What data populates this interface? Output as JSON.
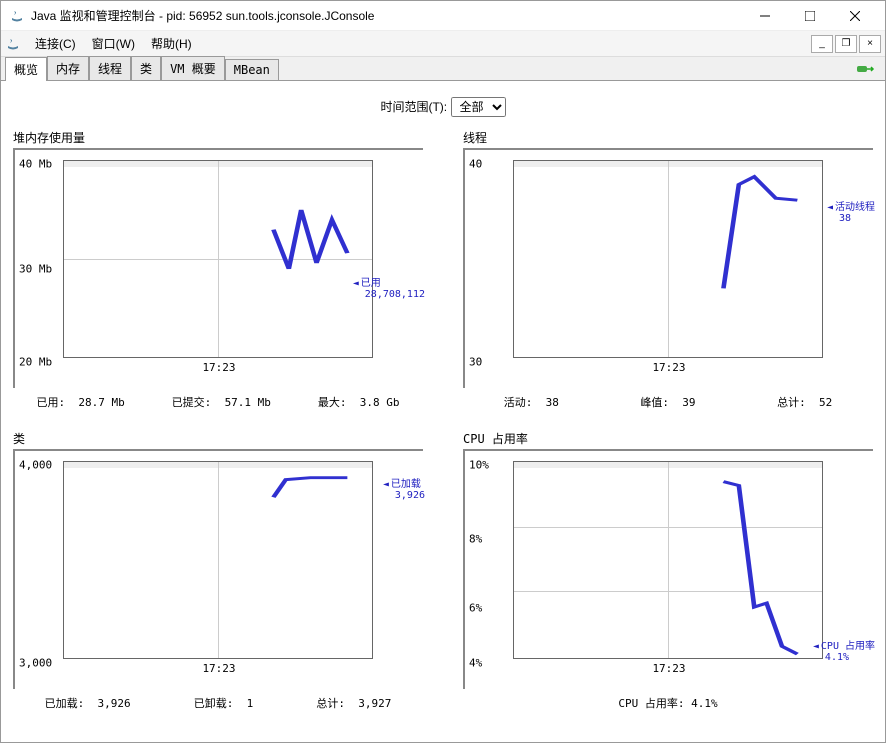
{
  "window": {
    "title": "Java 监视和管理控制台 - pid: 56952 sun.tools.jconsole.JConsole"
  },
  "menu": {
    "connection": "连接(C)",
    "window": "窗口(W)",
    "help": "帮助(H)"
  },
  "tabs": {
    "overview": "概览",
    "memory": "内存",
    "threads": "线程",
    "classes": "类",
    "vm_summary": "VM 概要",
    "mbean": "MBean"
  },
  "time_range": {
    "label": "时间范围(T):",
    "value": "全部"
  },
  "heap": {
    "title": "堆内存使用量",
    "yticks": [
      "40 Mb",
      "30 Mb",
      "20 Mb"
    ],
    "xtick": "17:23",
    "label_title": "已用",
    "label_value": "28,708,112",
    "stats": {
      "used_l": "已用:",
      "used_v": "28.7  Mb",
      "committed_l": "已提交:",
      "committed_v": "57.1  Mb",
      "max_l": "最大:",
      "max_v": "3.8  Gb"
    },
    "points": [
      [
        68,
        35
      ],
      [
        73,
        55
      ],
      [
        77,
        25
      ],
      [
        82,
        52
      ],
      [
        87,
        30
      ],
      [
        92,
        47
      ]
    ]
  },
  "threads": {
    "title": "线程",
    "yticks": [
      "40",
      "30"
    ],
    "xtick": "17:23",
    "label_title": "活动线程",
    "label_value": "38",
    "stats": {
      "live_l": "活动:",
      "live_v": "38",
      "peak_l": "峰值:",
      "peak_v": "39",
      "total_l": "总计:",
      "total_v": "52"
    },
    "points": [
      [
        68,
        65
      ],
      [
        73,
        12
      ],
      [
        78,
        8
      ],
      [
        85,
        19
      ],
      [
        92,
        20
      ]
    ]
  },
  "classes": {
    "title": "类",
    "yticks": [
      "4,000",
      "3,000"
    ],
    "xtick": "17:23",
    "label_title": "已加载",
    "label_value": "3,926",
    "stats": {
      "loaded_l": "已加载:",
      "loaded_v": "3,926",
      "unloaded_l": "已卸载:",
      "unloaded_v": "1",
      "total_l": "总计:",
      "total_v": "3,927"
    },
    "points": [
      [
        68,
        18
      ],
      [
        72,
        9
      ],
      [
        80,
        8
      ],
      [
        92,
        8
      ]
    ]
  },
  "cpu": {
    "title": "CPU 占用率",
    "yticks": [
      "10%",
      "8%",
      "6%",
      "4%"
    ],
    "xtick": "17:23",
    "label_title": "CPU 占用率",
    "label_value": "4.1%",
    "stats_text": "CPU 占用率: 4.1%",
    "points": [
      [
        68,
        10
      ],
      [
        73,
        12
      ],
      [
        78,
        74
      ],
      [
        82,
        72
      ],
      [
        87,
        94
      ],
      [
        92,
        98
      ]
    ]
  },
  "colors": {
    "line": "#3030d0",
    "grid": "#cccccc",
    "border": "#666666"
  }
}
